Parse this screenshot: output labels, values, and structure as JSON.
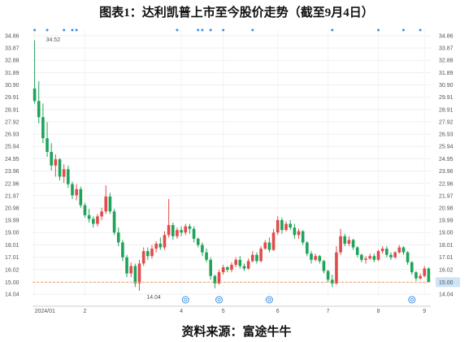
{
  "title": "图表1：达利凯普上市至今股价走势（截至9月4日）",
  "source": "资料来源：富途牛牛",
  "chart_data": {
    "type": "candlestick",
    "title": "图表1：达利凯普上市至今股价走势（截至9月4日）",
    "y_ticks": [
      "34.86",
      "33.87",
      "32.88",
      "31.89",
      "30.90",
      "29.91",
      "28.91",
      "27.92",
      "26.93",
      "25.94",
      "24.95",
      "23.96",
      "22.96",
      "21.97",
      "20.98",
      "19.99",
      "19.00",
      "18.01",
      "17.01",
      "16.02",
      "15.00",
      "14.04"
    ],
    "ylim": [
      14.04,
      34.86
    ],
    "x_ticks": [
      "2024/01",
      "2",
      "4",
      "5",
      "6",
      "7",
      "8",
      "9"
    ],
    "x_tick_index": [
      0,
      12,
      35,
      45,
      58,
      70,
      82,
      93
    ],
    "current_price": 15.0,
    "current_price_label": "15.00",
    "high_label": "34.52",
    "low_label": "14.04",
    "colors": {
      "up": "#e24b4b",
      "down": "#1fa45a",
      "marker": "#3b8fe0",
      "baseline": "#f0a070",
      "price_box": "#cfe3f7"
    },
    "candles": [
      [
        30.6,
        34.5,
        29.4,
        29.6
      ],
      [
        29.6,
        31.2,
        27.8,
        28.3
      ],
      [
        28.3,
        29.4,
        26.2,
        26.6
      ],
      [
        26.6,
        27.9,
        25.1,
        25.5
      ],
      [
        25.5,
        26.2,
        24.0,
        24.4
      ],
      [
        24.4,
        25.3,
        23.5,
        24.9
      ],
      [
        24.9,
        25.0,
        23.2,
        23.5
      ],
      [
        23.5,
        24.5,
        23.0,
        24.1
      ],
      [
        24.1,
        24.4,
        22.6,
        22.9
      ],
      [
        22.9,
        23.1,
        21.7,
        22.0
      ],
      [
        22.0,
        22.9,
        21.6,
        22.5
      ],
      [
        22.5,
        22.7,
        21.0,
        21.2
      ],
      [
        21.2,
        21.4,
        20.2,
        20.4
      ],
      [
        20.4,
        20.9,
        19.8,
        20.1
      ],
      [
        20.1,
        20.3,
        19.4,
        19.7
      ],
      [
        19.7,
        20.5,
        19.5,
        20.3
      ],
      [
        20.3,
        21.0,
        20.0,
        20.7
      ],
      [
        20.7,
        22.8,
        20.5,
        21.9
      ],
      [
        21.9,
        22.2,
        20.5,
        20.7
      ],
      [
        20.7,
        20.9,
        18.8,
        19.0
      ],
      [
        19.0,
        19.4,
        17.9,
        18.2
      ],
      [
        18.2,
        18.4,
        16.7,
        17.0
      ],
      [
        17.0,
        17.2,
        15.4,
        15.7
      ],
      [
        15.7,
        16.6,
        15.4,
        16.3
      ],
      [
        16.3,
        16.5,
        14.6,
        14.9
      ],
      [
        14.9,
        16.8,
        14.3,
        16.5
      ],
      [
        16.5,
        17.8,
        16.3,
        17.5
      ],
      [
        17.5,
        17.8,
        16.8,
        17.1
      ],
      [
        17.1,
        18.0,
        16.9,
        17.7
      ],
      [
        17.7,
        18.3,
        17.4,
        18.1
      ],
      [
        18.1,
        18.6,
        17.6,
        17.8
      ],
      [
        17.8,
        19.1,
        17.6,
        18.8
      ],
      [
        18.8,
        21.7,
        18.6,
        19.6
      ],
      [
        19.6,
        19.8,
        18.4,
        18.7
      ],
      [
        18.7,
        19.4,
        18.5,
        19.2
      ],
      [
        19.2,
        19.5,
        18.7,
        19.0
      ],
      [
        19.0,
        19.7,
        18.8,
        19.5
      ],
      [
        19.5,
        19.7,
        18.9,
        19.3
      ],
      [
        19.3,
        19.5,
        18.2,
        18.5
      ],
      [
        18.5,
        18.6,
        17.8,
        18.0
      ],
      [
        18.0,
        18.2,
        17.1,
        17.4
      ],
      [
        17.4,
        17.7,
        16.6,
        16.8
      ],
      [
        16.8,
        17.0,
        15.2,
        15.5
      ],
      [
        15.5,
        15.6,
        14.5,
        14.9
      ],
      [
        14.9,
        16.0,
        14.8,
        15.8
      ],
      [
        15.8,
        16.4,
        15.6,
        16.2
      ],
      [
        16.2,
        16.3,
        15.8,
        16.0
      ],
      [
        16.0,
        16.6,
        15.8,
        16.4
      ],
      [
        16.4,
        17.0,
        16.2,
        16.8
      ],
      [
        16.8,
        17.1,
        16.1,
        16.3
      ],
      [
        16.3,
        16.5,
        15.9,
        16.1
      ],
      [
        16.1,
        16.9,
        16.0,
        16.7
      ],
      [
        16.7,
        17.5,
        16.6,
        17.2
      ],
      [
        17.2,
        17.4,
        16.5,
        16.7
      ],
      [
        16.7,
        17.9,
        16.6,
        17.7
      ],
      [
        17.7,
        18.4,
        17.6,
        18.2
      ],
      [
        18.2,
        18.6,
        17.4,
        17.6
      ],
      [
        17.6,
        19.3,
        17.5,
        19.0
      ],
      [
        19.0,
        20.3,
        18.8,
        20.0
      ],
      [
        20.0,
        20.2,
        18.9,
        19.2
      ],
      [
        19.2,
        19.9,
        19.1,
        19.7
      ],
      [
        19.7,
        20.0,
        19.2,
        19.4
      ],
      [
        19.4,
        19.7,
        18.5,
        18.8
      ],
      [
        18.8,
        19.3,
        18.5,
        19.1
      ],
      [
        19.1,
        19.2,
        18.0,
        18.2
      ],
      [
        18.2,
        18.3,
        17.1,
        17.3
      ],
      [
        17.3,
        17.5,
        16.5,
        16.8
      ],
      [
        16.8,
        17.3,
        16.7,
        17.1
      ],
      [
        17.1,
        17.2,
        16.5,
        16.7
      ],
      [
        16.7,
        16.8,
        15.7,
        15.9
      ],
      [
        15.9,
        16.0,
        15.0,
        15.2
      ],
      [
        15.2,
        15.6,
        14.6,
        14.9
      ],
      [
        14.9,
        17.9,
        14.8,
        17.4
      ],
      [
        17.4,
        19.3,
        17.2,
        18.7
      ],
      [
        18.7,
        18.9,
        17.9,
        18.1
      ],
      [
        18.1,
        18.7,
        17.9,
        18.4
      ],
      [
        18.4,
        18.5,
        17.6,
        17.8
      ],
      [
        17.8,
        17.9,
        17.0,
        17.2
      ],
      [
        17.2,
        17.3,
        16.6,
        16.8
      ],
      [
        16.8,
        17.1,
        16.5,
        16.9
      ],
      [
        16.9,
        17.3,
        16.8,
        17.1
      ],
      [
        17.1,
        17.3,
        16.6,
        16.8
      ],
      [
        16.8,
        17.6,
        16.7,
        17.5
      ],
      [
        17.5,
        17.9,
        17.3,
        17.7
      ],
      [
        17.7,
        17.9,
        17.0,
        17.2
      ],
      [
        17.2,
        17.4,
        16.8,
        17.0
      ],
      [
        17.0,
        17.5,
        16.9,
        17.4
      ],
      [
        17.4,
        18.0,
        17.3,
        17.8
      ],
      [
        17.8,
        17.9,
        17.2,
        17.4
      ],
      [
        17.4,
        17.5,
        16.4,
        16.6
      ],
      [
        16.6,
        16.7,
        15.6,
        15.8
      ],
      [
        15.8,
        15.9,
        15.1,
        15.3
      ],
      [
        15.3,
        15.7,
        15.2,
        15.5
      ],
      [
        15.5,
        16.3,
        15.4,
        16.1
      ],
      [
        16.1,
        16.2,
        15.2,
        15.0
      ]
    ],
    "event_markers": [
      0,
      3,
      7,
      9,
      10,
      34,
      39,
      40,
      42,
      45,
      52,
      71,
      82,
      88,
      92
    ],
    "circle_markers": [
      36,
      44,
      56,
      90
    ]
  }
}
